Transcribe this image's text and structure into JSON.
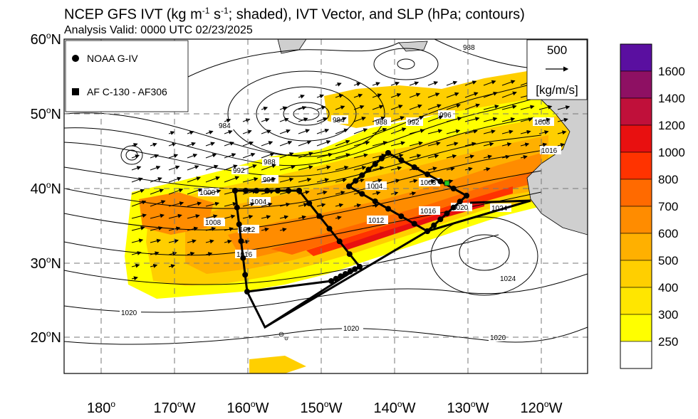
{
  "title": {
    "prefix": "NCEP GFS IVT (kg m",
    "exp1": "-1",
    "mid": " s",
    "exp2": "-1",
    "suffix": "; shaded), IVT Vector, and SLP (hPa; contours)"
  },
  "subtitle": "Analysis Valid: 0000 UTC 02/23/2025",
  "legend": {
    "items": [
      {
        "symbol": "circle",
        "label": "NOAA G-IV"
      },
      {
        "symbol": "square",
        "label": "AF C-130 - AF306"
      }
    ]
  },
  "reference_vector": {
    "value": "500",
    "units": "[kg/m/s]"
  },
  "lat_labels": [
    {
      "deg": "60",
      "hemi": "N"
    },
    {
      "deg": "50",
      "hemi": "N"
    },
    {
      "deg": "40",
      "hemi": "N"
    },
    {
      "deg": "30",
      "hemi": "N"
    },
    {
      "deg": "20",
      "hemi": "N"
    }
  ],
  "lon_labels": [
    {
      "deg": "180",
      "hemi": ""
    },
    {
      "deg": "170",
      "hemi": "W"
    },
    {
      "deg": "160",
      "hemi": "W"
    },
    {
      "deg": "150",
      "hemi": "W"
    },
    {
      "deg": "140",
      "hemi": "W"
    },
    {
      "deg": "130",
      "hemi": "W"
    },
    {
      "deg": "120",
      "hemi": "W"
    }
  ],
  "colorbar": {
    "labels": [
      "1600",
      "1400",
      "1200",
      "1000",
      "800",
      "700",
      "600",
      "500",
      "400",
      "300",
      "250"
    ],
    "colors": [
      "#5a0fa0",
      "#8e1063",
      "#c0103a",
      "#e81010",
      "#ff3300",
      "#ff6a00",
      "#ff8c00",
      "#ffb000",
      "#ffcf00",
      "#ffe600",
      "#ffff00",
      "#ffffff"
    ]
  },
  "contour_labels": [
    "988",
    "984",
    "984",
    "988",
    "992",
    "996",
    "988",
    "992",
    "996",
    "1000",
    "1004",
    "1008",
    "1012",
    "1016",
    "1004",
    "1008",
    "1012",
    "1016",
    "1020",
    "1024",
    "1008",
    "1016",
    "1020",
    "1024",
    "1020",
    "1020"
  ]
}
